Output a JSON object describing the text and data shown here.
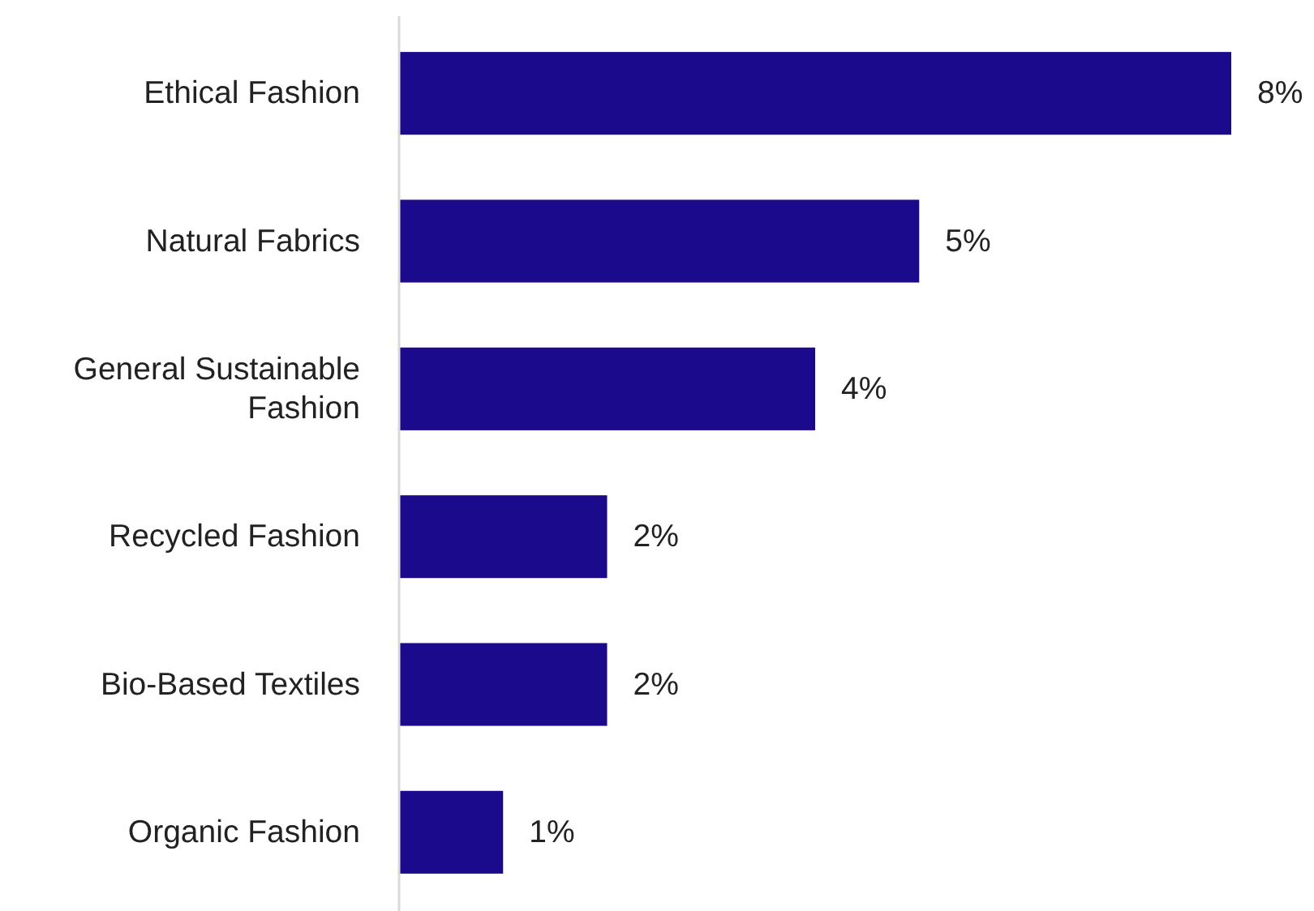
{
  "chart_data": {
    "type": "bar",
    "orientation": "horizontal",
    "categories": [
      "Ethical Fashion",
      "Natural Fabrics",
      "General Sustainable Fashion",
      "Recycled Fashion",
      "Bio-Based Textiles",
      "Organic Fashion"
    ],
    "values": [
      8,
      5,
      4,
      2,
      2,
      1
    ],
    "value_labels": [
      "8%",
      "5%",
      "4%",
      "2%",
      "2%",
      "1%"
    ],
    "color": "#1b0a8c"
  }
}
